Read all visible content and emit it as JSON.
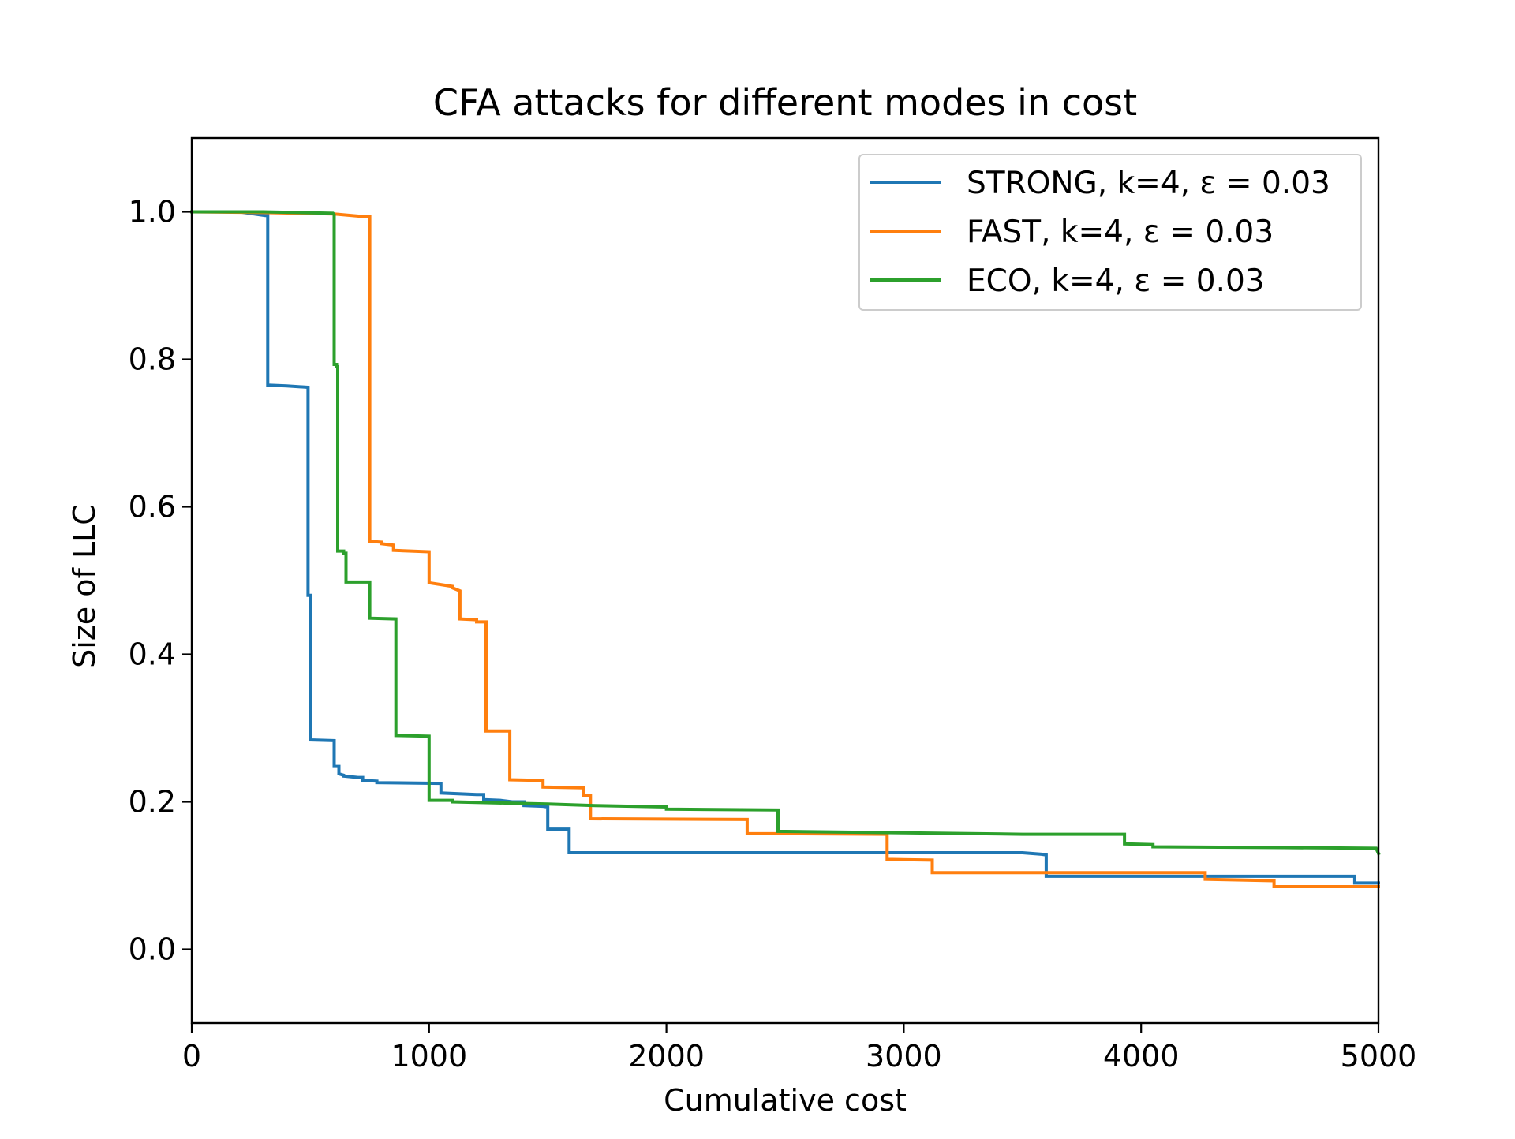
{
  "chart_data": {
    "type": "line",
    "title": "CFA attacks for different modes in cost",
    "xlabel": "Cumulative cost",
    "ylabel": "Size of LLC",
    "xlim": [
      0,
      5000
    ],
    "ylim": [
      -0.1,
      1.1
    ],
    "xticks": [
      0,
      1000,
      2000,
      3000,
      4000,
      5000
    ],
    "xtick_labels": [
      "0",
      "1000",
      "2000",
      "3000",
      "4000",
      "5000"
    ],
    "yticks": [
      0.0,
      0.2,
      0.4,
      0.6,
      0.8,
      1.0
    ],
    "ytick_labels": [
      "0.0",
      "0.2",
      "0.4",
      "0.6",
      "0.8",
      "1.0"
    ],
    "grid": false,
    "legend_position": "top-right",
    "series": [
      {
        "name": "STRONG, k=4, ε = 0.03",
        "color": "#1f77b4",
        "x": [
          0,
          200,
          310,
          320,
          320,
          400,
          490,
          490,
          500,
          500,
          600,
          600,
          620,
          620,
          640,
          640,
          700,
          720,
          720,
          780,
          780,
          1050,
          1050,
          1200,
          1230,
          1230,
          1300,
          1350,
          1400,
          1400,
          1480,
          1500,
          1500,
          1590,
          1590,
          3500,
          3580,
          3600,
          3600,
          4200,
          4900,
          4900,
          5000
        ],
        "y": [
          1.0,
          1.0,
          0.995,
          0.995,
          0.765,
          0.764,
          0.762,
          0.48,
          0.48,
          0.284,
          0.283,
          0.248,
          0.248,
          0.238,
          0.236,
          0.235,
          0.233,
          0.233,
          0.229,
          0.228,
          0.226,
          0.225,
          0.212,
          0.21,
          0.21,
          0.203,
          0.202,
          0.2,
          0.2,
          0.195,
          0.194,
          0.193,
          0.163,
          0.163,
          0.131,
          0.131,
          0.129,
          0.128,
          0.099,
          0.099,
          0.099,
          0.09,
          0.09
        ]
      },
      {
        "name": "FAST, k=4, ε = 0.03",
        "color": "#ff7f0e",
        "x": [
          0,
          300,
          600,
          740,
          740,
          750,
          750,
          800,
          800,
          850,
          850,
          1000,
          1000,
          1100,
          1100,
          1130,
          1130,
          1200,
          1200,
          1240,
          1240,
          1340,
          1340,
          1480,
          1480,
          1650,
          1650,
          1680,
          1680,
          2340,
          2340,
          2930,
          2930,
          3120,
          3120,
          4270,
          4270,
          4560,
          4560,
          5000
        ],
        "y": [
          1.0,
          0.999,
          0.997,
          0.993,
          0.993,
          0.993,
          0.553,
          0.552,
          0.55,
          0.548,
          0.541,
          0.539,
          0.497,
          0.492,
          0.49,
          0.486,
          0.448,
          0.447,
          0.444,
          0.444,
          0.296,
          0.296,
          0.23,
          0.229,
          0.22,
          0.219,
          0.209,
          0.209,
          0.177,
          0.176,
          0.157,
          0.156,
          0.122,
          0.121,
          0.104,
          0.104,
          0.095,
          0.093,
          0.085,
          0.085
        ]
      },
      {
        "name": "ECO, k=4, ε = 0.03",
        "color": "#2ca02c",
        "x": [
          0,
          300,
          595,
          600,
          600,
          610,
          610,
          615,
          615,
          640,
          640,
          650,
          650,
          750,
          750,
          860,
          860,
          1000,
          1000,
          1100,
          1100,
          1500,
          1700,
          2000,
          2000,
          2470,
          2470,
          3000,
          3500,
          3930,
          3930,
          4050,
          4050,
          4600,
          4990,
          5000
        ],
        "y": [
          1.0,
          1.0,
          0.998,
          0.996,
          0.793,
          0.793,
          0.79,
          0.79,
          0.54,
          0.54,
          0.537,
          0.537,
          0.498,
          0.498,
          0.449,
          0.448,
          0.29,
          0.289,
          0.202,
          0.202,
          0.2,
          0.197,
          0.195,
          0.193,
          0.19,
          0.189,
          0.16,
          0.158,
          0.156,
          0.156,
          0.143,
          0.142,
          0.139,
          0.138,
          0.137,
          0.13
        ]
      }
    ]
  }
}
